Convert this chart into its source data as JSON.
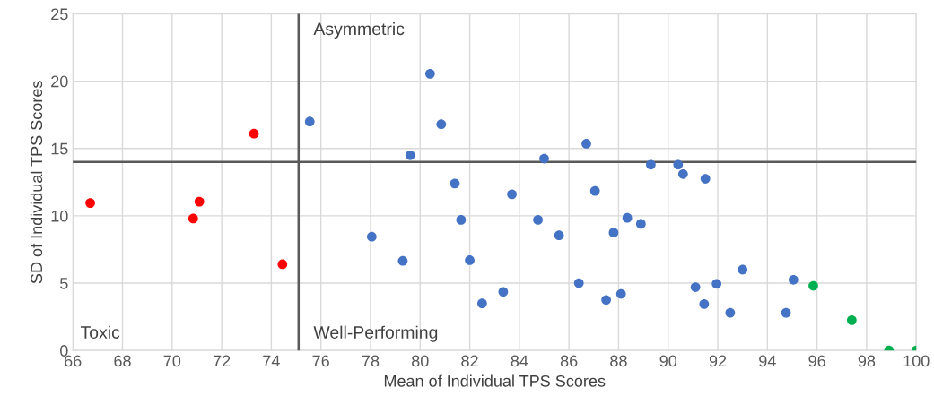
{
  "chart_data": {
    "type": "scatter",
    "xlabel": "Mean of Individual TPS Scores",
    "ylabel": "SD of Individual TPS Scores",
    "xlim": [
      66,
      100
    ],
    "xticks": [
      66,
      68,
      70,
      72,
      74,
      76,
      78,
      80,
      82,
      84,
      86,
      88,
      90,
      92,
      94,
      96,
      98,
      100
    ],
    "ylim": [
      0,
      25
    ],
    "yticks": [
      0,
      5,
      10,
      15,
      20,
      25
    ],
    "grid": true,
    "marker": "circle",
    "series": [
      {
        "color": "#ff0000",
        "x": [
          66.7,
          71.1,
          70.85,
          73.3,
          74.45
        ],
        "values": [
          10.95,
          11.05,
          9.8,
          16.1,
          6.4
        ]
      },
      {
        "color": "#4472c4",
        "x": [
          75.55,
          80.4,
          80.85,
          79.6,
          81.4,
          81.65,
          78.05,
          79.3,
          82.0,
          82.5,
          83.35,
          83.7,
          85.0,
          84.75,
          85.6,
          86.7,
          87.05,
          86.4,
          87.8,
          88.35,
          88.9,
          87.5,
          88.1,
          89.3,
          90.4,
          90.6,
          91.5,
          91.1,
          91.95,
          91.45,
          93.0,
          92.5,
          95.05,
          94.75
        ],
        "values": [
          17.0,
          20.55,
          16.8,
          14.5,
          12.4,
          9.7,
          8.45,
          6.65,
          6.7,
          3.5,
          4.35,
          11.6,
          14.25,
          9.7,
          8.55,
          15.35,
          11.85,
          5.0,
          8.75,
          9.85,
          9.4,
          3.75,
          4.2,
          13.8,
          13.8,
          13.1,
          12.75,
          4.7,
          4.95,
          3.45,
          6.0,
          2.8,
          5.25,
          2.8
        ]
      },
      {
        "color": "#00b050",
        "x": [
          95.85,
          97.4,
          98.9,
          100
        ],
        "values": [
          4.8,
          2.25,
          0,
          0
        ]
      }
    ],
    "ref_lines": [
      {
        "axis": "x",
        "value": 75.1,
        "color": "#595959"
      },
      {
        "axis": "y",
        "value": 14,
        "color": "#595959"
      }
    ],
    "annotations": [
      "Asymmetric",
      "Toxic",
      "Well-Performing"
    ]
  }
}
